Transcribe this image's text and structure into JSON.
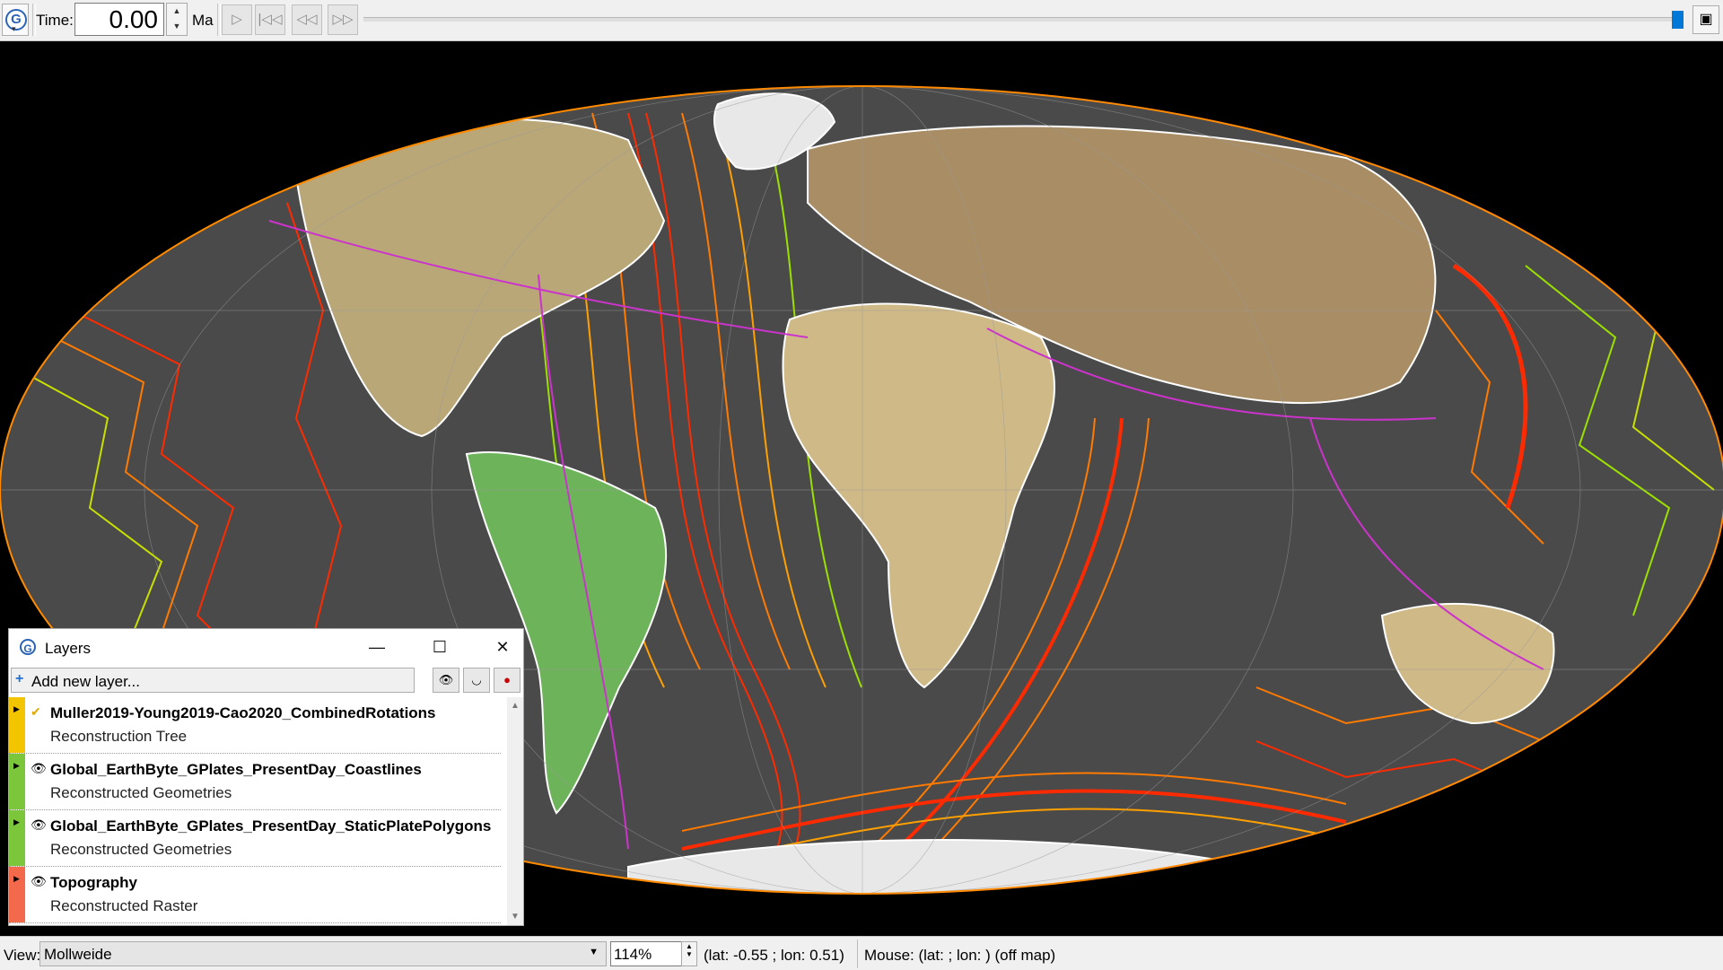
{
  "toolbar": {
    "time_label": "Time:",
    "time_value": "0.00",
    "time_unit": "Ma",
    "buttons": [
      "play",
      "reset-to-start",
      "step-back",
      "step-forward"
    ],
    "slider_position": 0.99
  },
  "globe": {
    "projection_colors": {
      "ocean": "#4a4a4a",
      "land_low": "#3fa24a",
      "land_mid": "#cfb987",
      "land_high": "#a98d64",
      "ice": "#e8e8e8",
      "young_crust": "#ff2a00",
      "mid_crust": "#ff8a00",
      "old_crust": "#b8e100",
      "boundaries": "#cc33cc",
      "coastlines": "#ffffff"
    }
  },
  "layers_window": {
    "title": "Layers",
    "add_label": "Add new layer...",
    "layers": [
      {
        "name": "Muller2019-Young2019-Cao2020_CombinedRotations",
        "type": "Reconstruction Tree",
        "color": "#f3c400",
        "toggle_icon": "check-icon"
      },
      {
        "name": "Global_EarthByte_GPlates_PresentDay_Coastlines",
        "type": "Reconstructed Geometries",
        "color": "#7cc63c",
        "toggle_icon": "eye-icon"
      },
      {
        "name": "Global_EarthByte_GPlates_PresentDay_StaticPlatePolygons",
        "type": "Reconstructed Geometries",
        "color": "#7cc63c",
        "toggle_icon": "eye-icon"
      },
      {
        "name": "Topography",
        "type": "Reconstructed Raster",
        "color": "#f26a4b",
        "toggle_icon": "eye-icon"
      }
    ]
  },
  "statusbar": {
    "view_label": "View:",
    "view_value": "Mollweide",
    "zoom": "114%",
    "coords": "(lat: -0.55 ; lon: 0.51)",
    "mouse": "Mouse: (lat:  ; lon: ) (off map)"
  }
}
